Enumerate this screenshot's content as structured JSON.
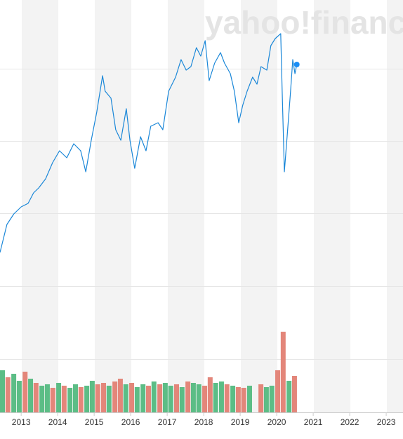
{
  "watermark": "yahoo!finance",
  "chart_data": [
    {
      "type": "line",
      "color": "#1a87d8",
      "xlim": [
        2012.42,
        2023.46
      ],
      "ylim": [
        0,
        588
      ],
      "x": [
        2012.42,
        2012.61,
        2012.8,
        2013.0,
        2013.19,
        2013.34,
        2013.48,
        2013.67,
        2013.86,
        2014.05,
        2014.25,
        2014.44,
        2014.63,
        2014.77,
        2014.92,
        2015.07,
        2015.23,
        2015.3,
        2015.46,
        2015.59,
        2015.73,
        2015.88,
        2015.98,
        2016.11,
        2016.27,
        2016.42,
        2016.55,
        2016.75,
        2016.88,
        2017.04,
        2017.23,
        2017.38,
        2017.52,
        2017.65,
        2017.8,
        2017.92,
        2018.04,
        2018.15,
        2018.3,
        2018.46,
        2018.57,
        2018.73,
        2018.84,
        2018.96,
        2019.07,
        2019.19,
        2019.34,
        2019.46,
        2019.57,
        2019.73,
        2019.84,
        2019.96,
        2020.11,
        2020.15,
        2020.21,
        2020.3,
        2020.38,
        2020.44,
        2020.5,
        2020.55
      ],
      "values": [
        228,
        268,
        283,
        293,
        298,
        313,
        320,
        333,
        356,
        373,
        363,
        383,
        373,
        343,
        388,
        428,
        480,
        458,
        448,
        403,
        388,
        433,
        388,
        348,
        393,
        373,
        408,
        413,
        403,
        458,
        478,
        503,
        488,
        493,
        520,
        508,
        530,
        473,
        498,
        513,
        498,
        483,
        458,
        413,
        438,
        458,
        478,
        468,
        493,
        488,
        523,
        533,
        540,
        458,
        343,
        403,
        458,
        503,
        483,
        496
      ]
    },
    {
      "type": "bar",
      "xlim": [
        2012.42,
        2023.46
      ],
      "ylim": [
        0,
        150
      ],
      "xticks": [
        2013,
        2014,
        2015,
        2016,
        2017,
        2018,
        2019,
        2020,
        2021,
        2022,
        2023
      ],
      "x": [
        2012.42,
        2012.57,
        2012.73,
        2012.88,
        2013.04,
        2013.19,
        2013.34,
        2013.5,
        2013.65,
        2013.8,
        2013.96,
        2014.11,
        2014.27,
        2014.42,
        2014.57,
        2014.73,
        2014.88,
        2015.03,
        2015.19,
        2015.34,
        2015.5,
        2015.65,
        2015.8,
        2015.96,
        2016.11,
        2016.27,
        2016.42,
        2016.57,
        2016.73,
        2016.88,
        2017.03,
        2017.19,
        2017.34,
        2017.5,
        2017.65,
        2017.8,
        2017.96,
        2018.11,
        2018.26,
        2018.42,
        2018.57,
        2018.73,
        2018.88,
        2019.03,
        2019.19,
        2019.34,
        2019.5,
        2019.65,
        2019.8,
        2019.96,
        2020.11,
        2020.27,
        2020.42
      ],
      "values": [
        60,
        50,
        55,
        45,
        58,
        48,
        42,
        38,
        40,
        35,
        42,
        38,
        35,
        40,
        36,
        38,
        45,
        40,
        42,
        38,
        44,
        48,
        40,
        42,
        36,
        40,
        38,
        44,
        40,
        42,
        38,
        40,
        36,
        44,
        42,
        40,
        38,
        50,
        42,
        44,
        40,
        38,
        36,
        35,
        38,
        null,
        40,
        36,
        38,
        60,
        115,
        45,
        52
      ],
      "colors": [
        "#5cbd86",
        "#e3867a",
        "#5cbd86",
        "#5cbd86",
        "#e3867a",
        "#5cbd86",
        "#e3867a",
        "#5cbd86",
        "#5cbd86",
        "#e3867a",
        "#5cbd86",
        "#e3867a",
        "#5cbd86",
        "#5cbd86",
        "#e3867a",
        "#5cbd86",
        "#5cbd86",
        "#e3867a",
        "#e3867a",
        "#5cbd86",
        "#e3867a",
        "#e3867a",
        "#5cbd86",
        "#e3867a",
        "#5cbd86",
        "#5cbd86",
        "#e3867a",
        "#5cbd86",
        "#e3867a",
        "#5cbd86",
        "#5cbd86",
        "#e3867a",
        "#5cbd86",
        "#e3867a",
        "#5cbd86",
        "#5cbd86",
        "#e3867a",
        "#e3867a",
        "#5cbd86",
        "#5cbd86",
        "#e3867a",
        "#5cbd86",
        "#e3867a",
        "#e3867a",
        "#5cbd86",
        "#5cbd86",
        "#e3867a",
        "#5cbd86",
        "#5cbd86",
        "#e3867a",
        "#e3867a",
        "#5cbd86",
        "#e3867a"
      ]
    }
  ]
}
